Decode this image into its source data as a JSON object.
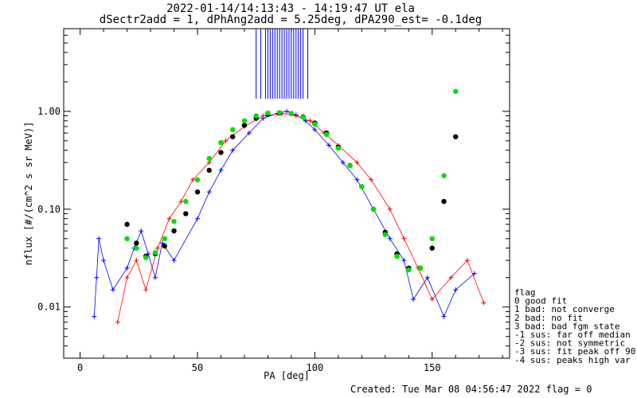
{
  "chart_data": {
    "type": "scatter",
    "title": "2022-01-14/14:13:43 - 14:19:47 UT ela",
    "subtitle": "dSectr2add = 1, dPhAng2add = 5.25deg, dPA290_est=  -0.1deg",
    "xlabel": "PA [deg]",
    "ylabel": "nflux [#/(cm^2 s sr MeV)]",
    "xlim": [
      -7,
      183
    ],
    "ylim": [
      0.003,
      7
    ],
    "yscale": "log",
    "xticks": [
      "0",
      "50",
      "100",
      "150"
    ],
    "yticks": [
      "0.01",
      "0.10",
      "1.00"
    ],
    "series": [
      {
        "color": "#0000ff",
        "marker": "+",
        "x": [
          6,
          7,
          8,
          10,
          14,
          20,
          23,
          26,
          29,
          32,
          35,
          40,
          50,
          55,
          60,
          65,
          72,
          78,
          84,
          88,
          92,
          96,
          100,
          106,
          112,
          118,
          125,
          132,
          138,
          142,
          148,
          155,
          160,
          168
        ],
        "y": [
          0.008,
          0.02,
          0.05,
          0.03,
          0.015,
          0.025,
          0.04,
          0.06,
          0.035,
          0.02,
          0.045,
          0.03,
          0.08,
          0.15,
          0.25,
          0.4,
          0.6,
          0.85,
          0.95,
          1.0,
          0.92,
          0.8,
          0.65,
          0.45,
          0.3,
          0.2,
          0.1,
          0.05,
          0.03,
          0.012,
          0.02,
          0.008,
          0.015,
          0.022
        ]
      },
      {
        "color": "#ff0000",
        "marker": "+",
        "x": [
          16,
          20,
          24,
          28,
          33,
          38,
          43,
          48,
          55,
          62,
          70,
          78,
          86,
          92,
          98,
          104,
          110,
          118,
          124,
          132,
          138,
          144,
          150,
          158,
          165,
          172
        ],
        "y": [
          0.007,
          0.02,
          0.03,
          0.015,
          0.04,
          0.08,
          0.12,
          0.2,
          0.3,
          0.5,
          0.7,
          0.9,
          0.95,
          0.9,
          0.8,
          0.6,
          0.45,
          0.3,
          0.2,
          0.1,
          0.05,
          0.025,
          0.012,
          0.02,
          0.03,
          0.011
        ]
      },
      {
        "color": "#000000",
        "name": "",
        "x": [
          20,
          24,
          28,
          32,
          36,
          40,
          45,
          50,
          55,
          60,
          65,
          70,
          75,
          80,
          85,
          90,
          95,
          100,
          105,
          110,
          115,
          120,
          125,
          130,
          135,
          140,
          145,
          150,
          155,
          160
        ],
        "y": [
          0.07,
          0.045,
          0.033,
          0.035,
          0.042,
          0.06,
          0.09,
          0.15,
          0.25,
          0.38,
          0.55,
          0.72,
          0.85,
          0.93,
          0.96,
          0.95,
          0.88,
          0.76,
          0.6,
          0.43,
          0.28,
          0.17,
          0.1,
          0.058,
          0.035,
          0.025,
          0.025,
          0.04,
          0.12,
          0.55
        ]
      },
      {
        "color": "#00e000",
        "name": "",
        "x": [
          20,
          24,
          28,
          32,
          36,
          40,
          45,
          50,
          55,
          60,
          65,
          70,
          75,
          80,
          85,
          90,
          95,
          100,
          105,
          110,
          115,
          120,
          125,
          130,
          135,
          140,
          145,
          150,
          155,
          160
        ],
        "y": [
          0.05,
          0.04,
          0.032,
          0.036,
          0.05,
          0.075,
          0.12,
          0.2,
          0.33,
          0.48,
          0.65,
          0.8,
          0.9,
          0.96,
          0.97,
          0.95,
          0.87,
          0.74,
          0.58,
          0.42,
          0.28,
          0.17,
          0.1,
          0.055,
          0.033,
          0.024,
          0.025,
          0.05,
          0.22,
          1.6
        ]
      }
    ],
    "vlines": {
      "color": "#0000ff",
      "x": [
        75,
        77,
        79,
        80,
        81,
        82,
        83,
        84,
        85,
        86,
        87,
        88,
        89,
        90,
        91,
        92,
        93,
        94,
        95,
        97
      ]
    },
    "legend": {
      "title": "flag",
      "entries": [
        " 0 good fit",
        " 1 bad: not converge",
        " 2 bad: no fit",
        " 3 bad: bad fgm state",
        "-1 sus: far off median",
        "-2 sus: not symmetric",
        "-3 sus: fit peak off 90",
        "-4 sus: peaks high var"
      ],
      "placement": "right"
    },
    "footer": "Created: Tue Mar 08 04:56:47 2022    flag = 0"
  }
}
